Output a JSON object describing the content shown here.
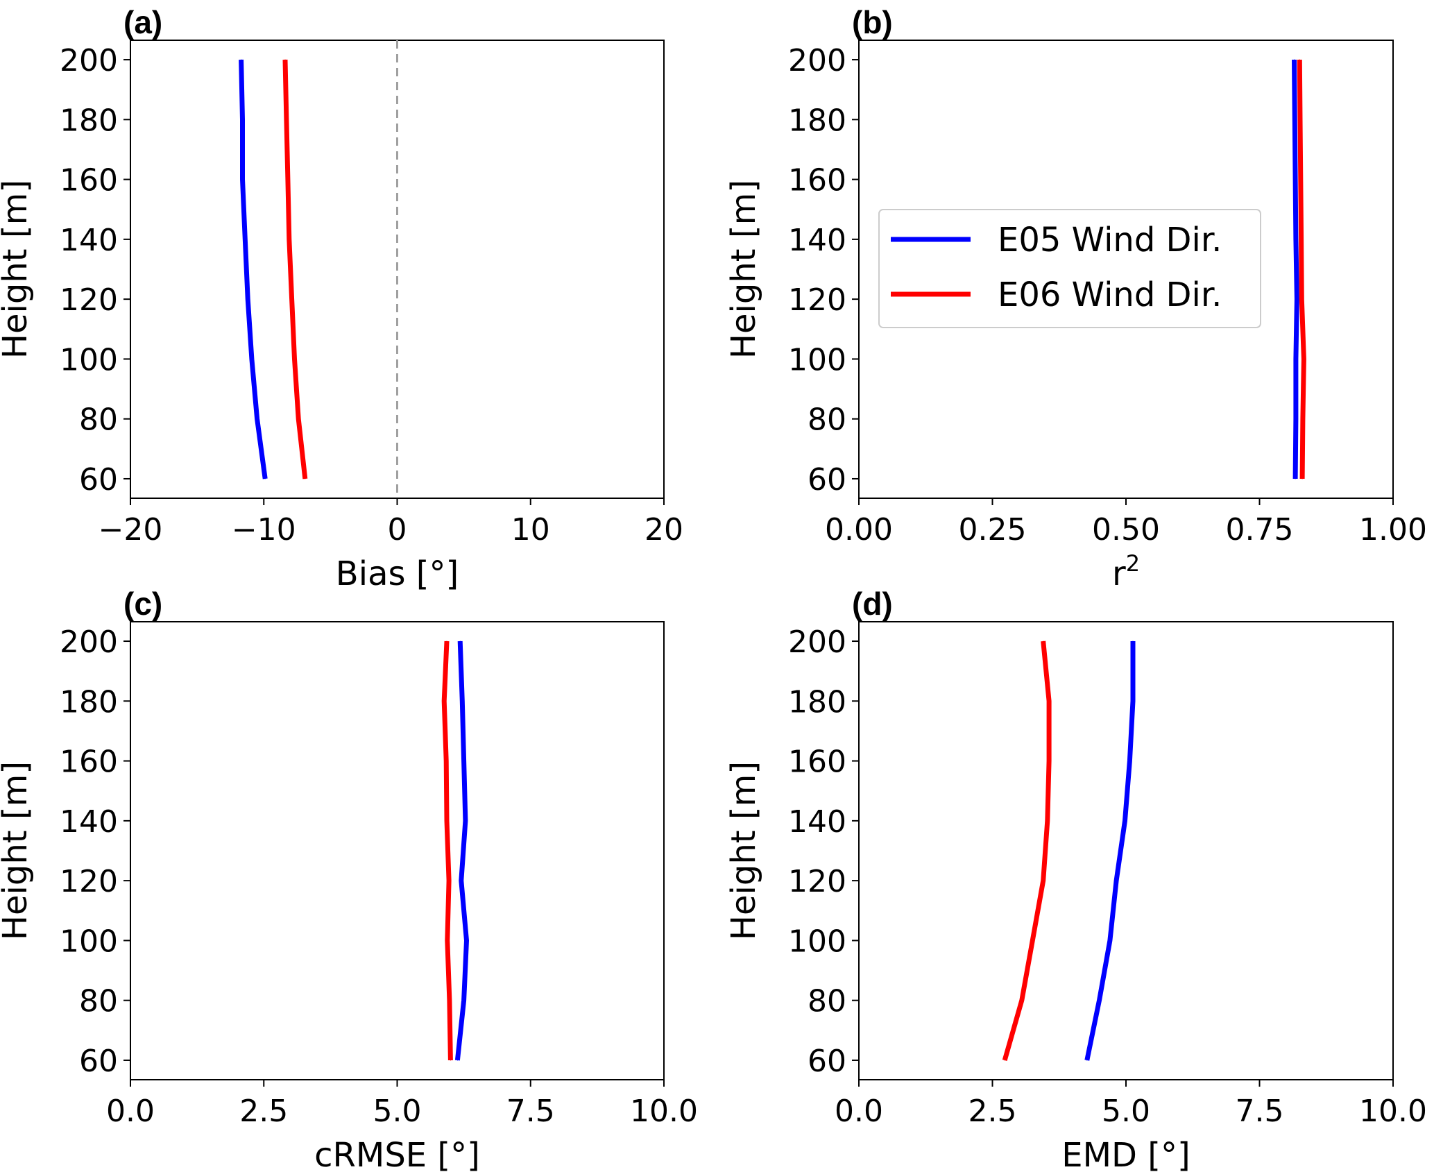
{
  "chart_data": [
    {
      "type": "line",
      "panel_label": "(a)",
      "xlabel": "Bias [°]",
      "ylabel": "Height [m]",
      "xlim": [
        -20,
        20
      ],
      "ylim": [
        53.5,
        206.5
      ],
      "xticks": [
        -20,
        -10,
        0,
        10,
        20
      ],
      "xtick_labels": [
        "−20",
        "−10",
        "0",
        "10",
        "20"
      ],
      "yticks": [
        60,
        80,
        100,
        120,
        140,
        160,
        180,
        200
      ],
      "ytick_labels": [
        "60",
        "80",
        "100",
        "120",
        "140",
        "160",
        "180",
        "200"
      ],
      "reference_line": {
        "x": 0,
        "style": "dashed",
        "color": "#a0a0a0"
      },
      "heights": [
        60,
        80,
        100,
        120,
        140,
        160,
        180,
        200
      ],
      "series": [
        {
          "name": "E05 Wind Dir.",
          "color": "#0000ff",
          "values": [
            -9.9,
            -10.5,
            -10.9,
            -11.2,
            -11.4,
            -11.6,
            -11.6,
            -11.7
          ]
        },
        {
          "name": "E06 Wind Dir.",
          "color": "#ff0000",
          "values": [
            -6.9,
            -7.4,
            -7.7,
            -7.9,
            -8.1,
            -8.2,
            -8.3,
            -8.4
          ]
        }
      ]
    },
    {
      "type": "line",
      "panel_label": "(b)",
      "xlabel": "r",
      "xlabel_sup": "2",
      "ylabel": "Height [m]",
      "xlim": [
        0,
        1
      ],
      "ylim": [
        53.5,
        206.5
      ],
      "xticks": [
        0,
        0.25,
        0.5,
        0.75,
        1.0
      ],
      "xtick_labels": [
        "0.00",
        "0.25",
        "0.50",
        "0.75",
        "1.00"
      ],
      "yticks": [
        60,
        80,
        100,
        120,
        140,
        160,
        180,
        200
      ],
      "ytick_labels": [
        "60",
        "80",
        "100",
        "120",
        "140",
        "160",
        "180",
        "200"
      ],
      "legend": {
        "position": "center-left",
        "entries": [
          "E05 Wind Dir.",
          "E06 Wind Dir."
        ]
      },
      "heights": [
        60,
        80,
        100,
        120,
        140,
        160,
        180,
        200
      ],
      "series": [
        {
          "name": "E05 Wind Dir.",
          "color": "#0000ff",
          "values": [
            0.817,
            0.818,
            0.818,
            0.82,
            0.818,
            0.817,
            0.816,
            0.815
          ]
        },
        {
          "name": "E06 Wind Dir.",
          "color": "#ff0000",
          "values": [
            0.83,
            0.831,
            0.833,
            0.829,
            0.828,
            0.827,
            0.826,
            0.825
          ]
        }
      ]
    },
    {
      "type": "line",
      "panel_label": "(c)",
      "xlabel": "cRMSE [°]",
      "ylabel": "Height [m]",
      "xlim": [
        0,
        10
      ],
      "ylim": [
        53.5,
        206.5
      ],
      "xticks": [
        0,
        2.5,
        5,
        7.5,
        10
      ],
      "xtick_labels": [
        "0.0",
        "2.5",
        "5.0",
        "7.5",
        "10.0"
      ],
      "yticks": [
        60,
        80,
        100,
        120,
        140,
        160,
        180,
        200
      ],
      "ytick_labels": [
        "60",
        "80",
        "100",
        "120",
        "140",
        "160",
        "180",
        "200"
      ],
      "heights": [
        60,
        80,
        100,
        120,
        140,
        160,
        180,
        200
      ],
      "series": [
        {
          "name": "E05 Wind Dir.",
          "color": "#0000ff",
          "values": [
            6.13,
            6.25,
            6.3,
            6.2,
            6.28,
            6.25,
            6.22,
            6.18
          ]
        },
        {
          "name": "E06 Wind Dir.",
          "color": "#ff0000",
          "values": [
            6.0,
            5.98,
            5.94,
            5.97,
            5.93,
            5.92,
            5.88,
            5.93
          ]
        }
      ]
    },
    {
      "type": "line",
      "panel_label": "(d)",
      "xlabel": "EMD [°]",
      "ylabel": "Height [m]",
      "xlim": [
        0,
        10
      ],
      "ylim": [
        53.5,
        206.5
      ],
      "xticks": [
        0,
        2.5,
        5,
        7.5,
        10
      ],
      "xtick_labels": [
        "0.0",
        "2.5",
        "5.0",
        "7.5",
        "10.0"
      ],
      "yticks": [
        60,
        80,
        100,
        120,
        140,
        160,
        180,
        200
      ],
      "ytick_labels": [
        "60",
        "80",
        "100",
        "120",
        "140",
        "160",
        "180",
        "200"
      ],
      "heights": [
        60,
        80,
        100,
        120,
        140,
        160,
        180,
        200
      ],
      "series": [
        {
          "name": "E05 Wind Dir.",
          "color": "#0000ff",
          "values": [
            4.27,
            4.5,
            4.7,
            4.82,
            4.98,
            5.07,
            5.13,
            5.13
          ]
        },
        {
          "name": "E06 Wind Dir.",
          "color": "#ff0000",
          "values": [
            2.73,
            3.05,
            3.25,
            3.45,
            3.53,
            3.56,
            3.56,
            3.45
          ]
        }
      ]
    }
  ]
}
